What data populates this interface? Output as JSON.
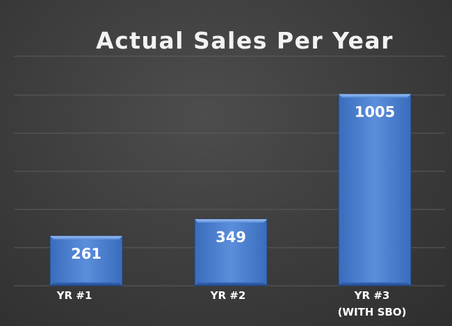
{
  "chart_data": {
    "type": "bar",
    "title": "Actual  Sales Per Year",
    "categories": [
      [
        "YR #1"
      ],
      [
        "YR #2"
      ],
      [
        "YR #3",
        "(WITH SBO)"
      ]
    ],
    "values": [
      261,
      349,
      1005
    ],
    "data_labels": [
      "261",
      "349",
      "1005"
    ],
    "xlabel": "",
    "ylabel": "",
    "ylim": [
      0,
      1000
    ],
    "grid": true,
    "legend": "none",
    "colors": {
      "bar_light": "#6f9de0",
      "bar_mid": "#4a7fd0",
      "bar_dark": "#2c5ba8",
      "bar_edge": "#1d3f7a",
      "text": "#ffffff",
      "title": "#f2f2f2",
      "grid": "#5d5d5d"
    }
  }
}
